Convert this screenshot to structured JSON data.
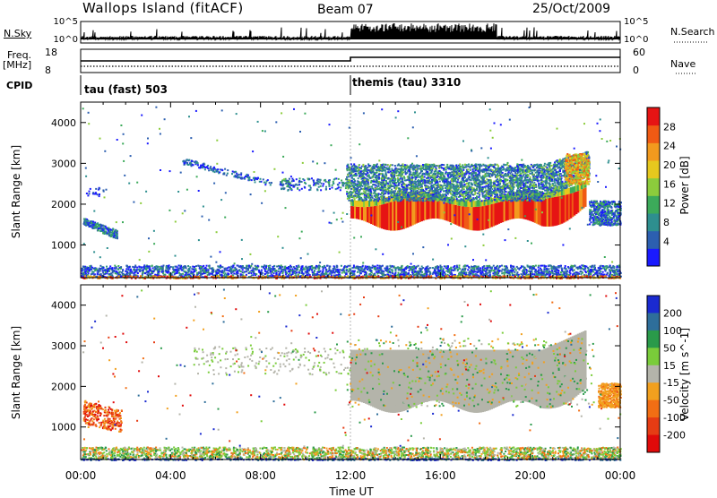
{
  "header": {
    "station": "Wallops Island (fitACF)",
    "beam": "Beam 07",
    "date": "25/Oct/2009"
  },
  "summary_panels": {
    "nsky_label": "N.Sky",
    "nsearch_label": "N.Search",
    "noise_ticks": [
      "10^5",
      "10^0"
    ],
    "freq_label": "Freq.",
    "freq_unit": "[MHz]",
    "freq_ticks": [
      "18",
      "8"
    ],
    "nave_label": "Nave",
    "nave_ticks": [
      "60",
      "0"
    ],
    "cpid_label": "CPID",
    "cpid_segments": [
      {
        "label": "tau (fast) 503",
        "start_hour": 0
      },
      {
        "label": "themis (tau) 3310",
        "start_hour": 12
      }
    ]
  },
  "colors": {
    "power_scale": [
      "#1a1aff",
      "#2c5fb0",
      "#2e8f8f",
      "#3caa5a",
      "#8ccc3c",
      "#e6c81e",
      "#f29a1e",
      "#f05a14",
      "#e61414"
    ],
    "velocity_scale": [
      "#1a2ad0",
      "#2e6e9a",
      "#2a9a4a",
      "#7acc3a",
      "#b4b4aa",
      "#f2a01e",
      "#f26e14",
      "#e63c14",
      "#e00a0a"
    ]
  },
  "chart_data": [
    {
      "type": "heatmap",
      "name": "power-panel",
      "xlabel": "",
      "ylabel": "Slant Range [km]",
      "xlim": [
        0,
        24
      ],
      "ylim": [
        200,
        4500
      ],
      "yticks": [
        1000,
        2000,
        3000,
        4000
      ],
      "colorbar_label": "Power [dB]",
      "colorbar_ticks": [
        "28",
        "24",
        "20",
        "16",
        "12",
        "8",
        "4"
      ],
      "features": [
        {
          "desc": "near-range ground scatter",
          "x": [
            0,
            24
          ],
          "y": [
            200,
            500
          ],
          "level": "low"
        },
        {
          "desc": "early scatter patch",
          "x": [
            0,
            1.2
          ],
          "y": [
            1000,
            1700
          ],
          "level": "low"
        },
        {
          "desc": "main F-region band",
          "x": [
            12,
            23
          ],
          "y": [
            1500,
            2100
          ],
          "level": "high"
        },
        {
          "desc": "upper scatter band",
          "x": [
            12,
            23
          ],
          "y": [
            2100,
            3000
          ],
          "level": "medium"
        }
      ]
    },
    {
      "type": "heatmap",
      "name": "velocity-panel",
      "xlabel": "Time UT",
      "ylabel": "Slant Range [km]",
      "xlim": [
        0,
        24
      ],
      "ylim": [
        200,
        4500
      ],
      "xticks": [
        "00:00",
        "04:00",
        "08:00",
        "12:00",
        "16:00",
        "20:00",
        "00:00"
      ],
      "yticks": [
        1000,
        2000,
        3000,
        4000
      ],
      "colorbar_label": "Velocity [m s^-1]",
      "colorbar_ticks": [
        "200",
        "100",
        "50",
        "15",
        "-15",
        "-50",
        "-100",
        "-200"
      ],
      "features": [
        {
          "desc": "ground scatter near zero velocity",
          "x": [
            12,
            23
          ],
          "y": [
            1500,
            3200
          ],
          "velocity": 0
        },
        {
          "desc": "near-range mixed scatter",
          "x": [
            0,
            24
          ],
          "y": [
            200,
            500
          ],
          "velocity": 30
        },
        {
          "desc": "early negative-velocity patch",
          "x": [
            0,
            1.5
          ],
          "y": [
            1100,
            1700
          ],
          "velocity": -60
        },
        {
          "desc": "late negative-velocity patch",
          "x": [
            23,
            24
          ],
          "y": [
            1500,
            2100
          ],
          "velocity": -60
        }
      ]
    }
  ]
}
